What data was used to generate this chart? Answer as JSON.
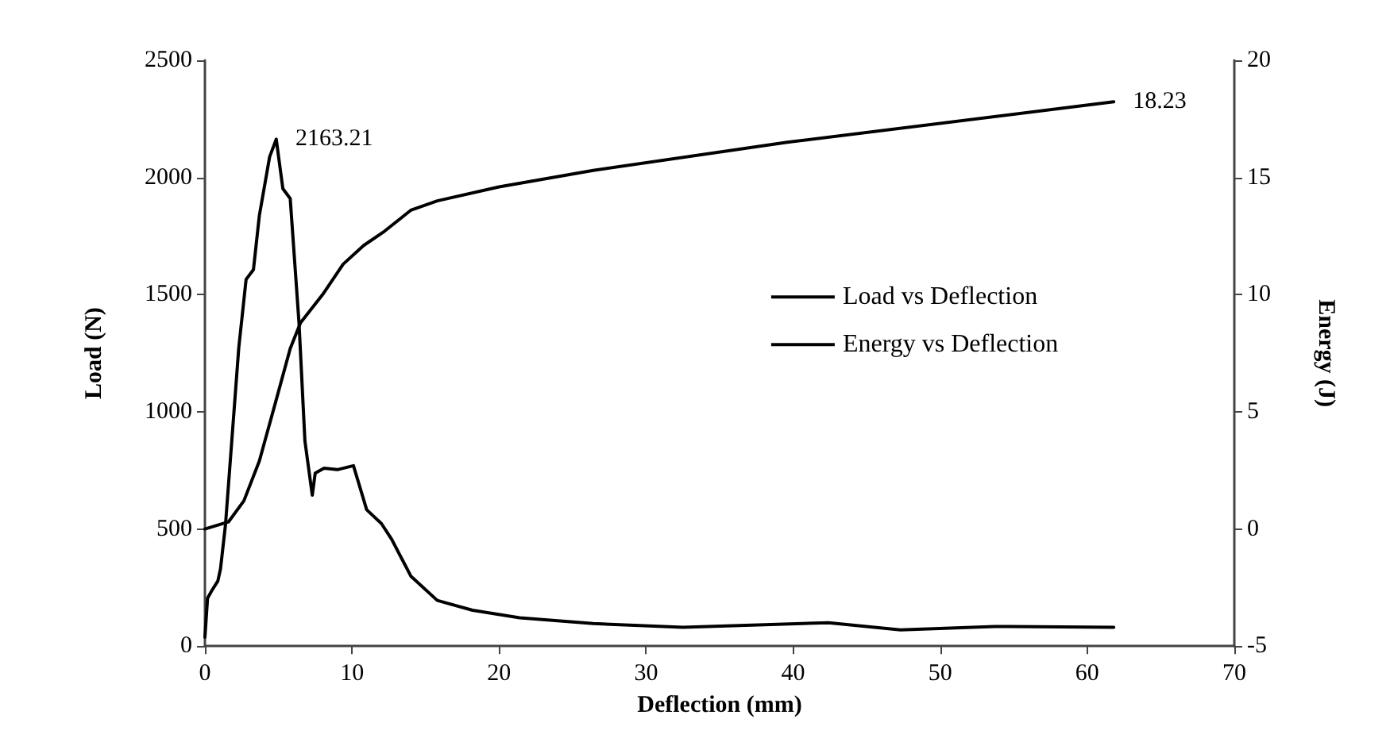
{
  "chart_data": {
    "type": "line",
    "xlabel": "Deflection (mm)",
    "ylabel": "Load (N)",
    "y2label": "Energy (J)",
    "xlim": [
      0,
      70
    ],
    "xticks": [
      0,
      10,
      20,
      30,
      40,
      50,
      60,
      70
    ],
    "ylim": [
      0,
      2500
    ],
    "yticks": [
      0,
      500,
      1000,
      1500,
      2000,
      2500
    ],
    "y2lim": [
      -5,
      20
    ],
    "y2ticks": [
      -5,
      0,
      5,
      10,
      15,
      20
    ],
    "grid": false,
    "legend": "right",
    "marker": "none",
    "series": [
      {
        "name": "Load vs Deflection",
        "color": "#000000",
        "line_style": "solid",
        "x": [
          0,
          0.18,
          0.46,
          0.88,
          1.06,
          1.4,
          2.3,
          2.8,
          3.3,
          3.7,
          4.4,
          4.85,
          5.3,
          5.8,
          6.4,
          6.8,
          7.3,
          7.5,
          8.1,
          9.0,
          10.1,
          11.0,
          12.0,
          12.7,
          14.0,
          15.8,
          18.2,
          21.4,
          26.4,
          32.5,
          42.4,
          47.3,
          53.7,
          61.8
        ],
        "values": [
          38,
          205,
          236,
          278,
          330,
          519,
          1272,
          1565,
          1607,
          1837,
          2088,
          2163.21,
          1952,
          1910,
          1377,
          875,
          644,
          738,
          759,
          753,
          770,
          582,
          523,
          456,
          299,
          195,
          153,
          121,
          96,
          80,
          100,
          69,
          84,
          80
        ],
        "value_labels": [
          null,
          null,
          null,
          null,
          null,
          null,
          null,
          null,
          null,
          null,
          null,
          "2163.21",
          null,
          null,
          null,
          null,
          null,
          null,
          null,
          null,
          null,
          null,
          null,
          null,
          null,
          null,
          null,
          null,
          null,
          null,
          null,
          null,
          null,
          null
        ]
      },
      {
        "name": "Energy vs Deflection",
        "color": "#000000",
        "line_style": "solid",
        "axis": "y2",
        "value_labels": [
          null,
          null,
          null,
          null,
          null,
          null,
          null,
          null,
          null,
          null,
          null,
          null,
          null,
          null,
          null,
          null,
          "18.23"
        ],
        "x": [
          0,
          1.6,
          2.65,
          3.7,
          4.8,
          5.8,
          6.5,
          8.0,
          9.4,
          10.8,
          12.2,
          14.0,
          15.8,
          20.0,
          26.4,
          39.6,
          61.8
        ],
        "values": [
          0,
          0.3,
          1.2,
          2.9,
          5.4,
          7.7,
          8.8,
          10.0,
          11.3,
          12.1,
          12.7,
          13.6,
          14.0,
          14.6,
          15.3,
          16.5,
          18.23
        ]
      }
    ]
  }
}
